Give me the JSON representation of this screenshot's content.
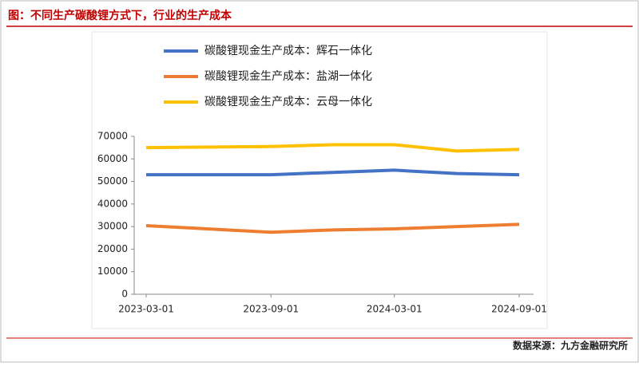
{
  "header": {
    "title": "图：不同生产碳酸锂方式下，行业的生产成本"
  },
  "chart_data": {
    "type": "line",
    "x": [
      "2023-03-01",
      "2023-09-01",
      "2023-12-01",
      "2024-03-01",
      "2024-06-01",
      "2024-09-01"
    ],
    "series": [
      {
        "name": "碳酸锂现金生产成本：辉石一体化",
        "color": "#4472c4",
        "values": [
          53000,
          53000,
          54000,
          55000,
          53500,
          53000
        ]
      },
      {
        "name": "碳酸锂现金生产成本：盐湖一体化",
        "color": "#ed7d31",
        "values": [
          30400,
          27500,
          28500,
          29000,
          30000,
          31000
        ]
      },
      {
        "name": "碳酸锂现金生产成本：云母一体化",
        "color": "#ffc000",
        "values": [
          65000,
          65500,
          66300,
          66300,
          63500,
          64200
        ]
      }
    ],
    "xlim": [
      "2023-03-01",
      "2024-09-01"
    ],
    "xticks": [
      "2023-03-01",
      "2023-09-01",
      "2024-03-01",
      "2024-09-01"
    ],
    "ylim": [
      0,
      70000
    ],
    "yticks": [
      0,
      10000,
      20000,
      30000,
      40000,
      50000,
      60000,
      70000
    ]
  },
  "footer": {
    "source": "数据来源：九方金融研究所"
  }
}
